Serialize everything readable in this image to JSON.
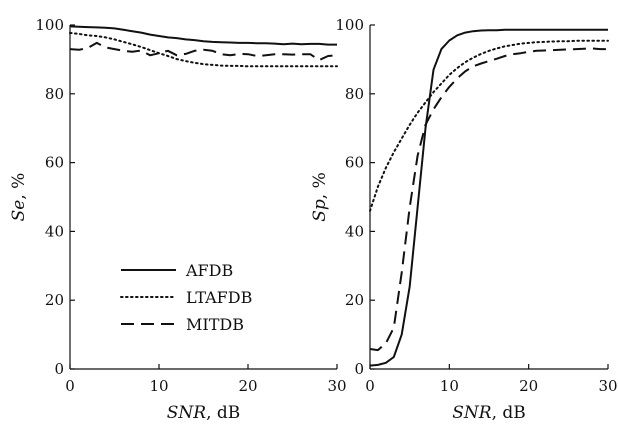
{
  "chart_data": [
    {
      "type": "line",
      "xlabel_var": "SNR",
      "xlabel_unit": ", dB",
      "ylabel_var": "Se",
      "ylabel_unit": ", %",
      "xlim": [
        0,
        30
      ],
      "ylim": [
        0,
        100
      ],
      "xticks": [
        0,
        10,
        20,
        30
      ],
      "yticks": [
        0,
        20,
        40,
        60,
        80,
        100
      ],
      "grid": false,
      "legend": "lower-center",
      "x": [
        0,
        1,
        2,
        3,
        4,
        5,
        6,
        7,
        8,
        9,
        10,
        11,
        12,
        13,
        14,
        15,
        16,
        17,
        18,
        19,
        20,
        21,
        22,
        23,
        24,
        25,
        26,
        27,
        28,
        29,
        30
      ],
      "series": [
        {
          "name": "AFDB",
          "style": "solid",
          "values": [
            99.6,
            99.5,
            99.4,
            99.3,
            99.2,
            99.0,
            98.6,
            98.2,
            97.8,
            97.2,
            96.8,
            96.4,
            96.2,
            95.8,
            95.6,
            95.3,
            95.1,
            95.0,
            94.9,
            94.8,
            94.8,
            94.7,
            94.7,
            94.6,
            94.4,
            94.6,
            94.4,
            94.5,
            94.5,
            94.3,
            94.3
          ]
        },
        {
          "name": "LTAFDB",
          "style": "dotted",
          "values": [
            97.7,
            97.4,
            97.0,
            96.8,
            96.4,
            95.8,
            95.1,
            94.4,
            93.6,
            92.7,
            91.8,
            91.0,
            90.1,
            89.5,
            89.0,
            88.6,
            88.4,
            88.2,
            88.1,
            88.1,
            88.0,
            88.0,
            88.0,
            88.0,
            88.0,
            88.0,
            88.0,
            88.0,
            88.0,
            88.0,
            88.0
          ]
        },
        {
          "name": "MITDB",
          "style": "dashed",
          "values": [
            93.0,
            92.8,
            93.3,
            94.8,
            93.5,
            93.0,
            92.5,
            92.2,
            92.6,
            91.2,
            91.8,
            92.5,
            91.2,
            91.6,
            92.5,
            92.8,
            92.5,
            91.5,
            91.2,
            91.6,
            91.5,
            91.0,
            91.2,
            91.5,
            91.5,
            91.4,
            91.5,
            91.5,
            89.8,
            91.0,
            91.2
          ]
        }
      ]
    },
    {
      "type": "line",
      "xlabel_var": "SNR",
      "xlabel_unit": ", dB",
      "ylabel_var": "Sp",
      "ylabel_unit": ", %",
      "xlim": [
        0,
        30
      ],
      "ylim": [
        0,
        100
      ],
      "xticks": [
        0,
        10,
        20,
        30
      ],
      "yticks": [
        0,
        20,
        40,
        60,
        80,
        100
      ],
      "grid": false,
      "x": [
        0,
        1,
        2,
        3,
        4,
        5,
        6,
        7,
        8,
        9,
        10,
        11,
        12,
        13,
        14,
        15,
        16,
        17,
        18,
        19,
        20,
        21,
        22,
        23,
        24,
        25,
        26,
        27,
        28,
        29,
        30
      ],
      "series": [
        {
          "name": "AFDB",
          "style": "solid",
          "values": [
            1.0,
            1.2,
            1.8,
            3.5,
            10.0,
            24.0,
            47.0,
            70.0,
            87.0,
            93.0,
            95.5,
            97.0,
            97.8,
            98.2,
            98.4,
            98.5,
            98.5,
            98.6,
            98.6,
            98.6,
            98.6,
            98.6,
            98.6,
            98.6,
            98.6,
            98.6,
            98.6,
            98.6,
            98.6,
            98.6,
            98.6
          ]
        },
        {
          "name": "LTAFDB",
          "style": "dotted",
          "values": [
            46.0,
            53.0,
            58.5,
            63.0,
            67.0,
            71.0,
            74.5,
            77.5,
            80.5,
            83.0,
            85.5,
            87.5,
            89.2,
            90.5,
            91.6,
            92.5,
            93.2,
            93.8,
            94.2,
            94.6,
            94.8,
            95.0,
            95.1,
            95.2,
            95.3,
            95.3,
            95.4,
            95.4,
            95.4,
            95.4,
            95.4
          ]
        },
        {
          "name": "MITDB",
          "style": "dashed",
          "values": [
            5.8,
            5.5,
            7.5,
            12.0,
            28.0,
            47.0,
            62.0,
            71.0,
            75.5,
            79.0,
            82.0,
            84.5,
            86.5,
            88.0,
            88.8,
            89.5,
            90.2,
            91.0,
            91.5,
            91.8,
            92.2,
            92.5,
            92.6,
            92.7,
            92.8,
            92.9,
            93.0,
            93.1,
            93.2,
            93.0,
            93.0
          ]
        }
      ]
    }
  ],
  "legend": {
    "items": [
      {
        "label": "AFDB",
        "style": "solid"
      },
      {
        "label": "LTAFDB",
        "style": "dotted"
      },
      {
        "label": "MITDB",
        "style": "dashed"
      }
    ]
  },
  "colors": {
    "line": "#111111",
    "background": "#ffffff"
  }
}
